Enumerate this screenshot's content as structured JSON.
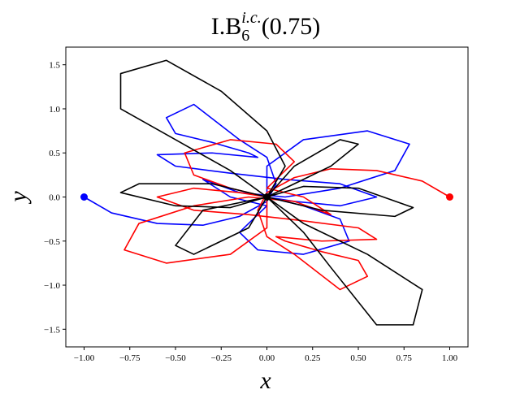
{
  "chart_data": {
    "type": "line",
    "title": {
      "main": "I.B",
      "sub": "6",
      "sup": "i.c.",
      "arg": "(0.75)"
    },
    "x_label": "x",
    "y_label": "y",
    "xlim": [
      -1.1,
      1.1
    ],
    "ylim": [
      -1.7,
      1.7
    ],
    "xticks": [
      {
        "value": -1.0,
        "label": "−1.00"
      },
      {
        "value": -0.75,
        "label": "−0.75"
      },
      {
        "value": -0.5,
        "label": "−0.50"
      },
      {
        "value": -0.25,
        "label": "−0.25"
      },
      {
        "value": 0,
        "label": "0.00"
      },
      {
        "value": 0.25,
        "label": "0.25"
      },
      {
        "value": 0.5,
        "label": "0.50"
      },
      {
        "value": 0.75,
        "label": "0.75"
      },
      {
        "value": 1.0,
        "label": "1.00"
      }
    ],
    "yticks": [
      {
        "value": -1.5,
        "label": "−1.5"
      },
      {
        "value": -1.0,
        "label": "−1.0"
      },
      {
        "value": -0.5,
        "label": "−0.5"
      },
      {
        "value": 0,
        "label": "0.0"
      },
      {
        "value": 0.5,
        "label": "0.5"
      },
      {
        "value": 1.0,
        "label": "1.0"
      },
      {
        "value": 1.5,
        "label": "1.5"
      }
    ],
    "series": [
      {
        "color": "#0000ff",
        "x": [
          -1.0,
          -0.85,
          -0.6,
          -0.35,
          -0.15,
          0.0,
          0.05,
          0.0,
          -0.15,
          -0.4,
          -0.55,
          -0.5,
          -0.3,
          -0.1,
          -0.05,
          -0.3,
          -0.6,
          -0.5,
          -0.2,
          0.1,
          0.4,
          0.6,
          0.4,
          0.15,
          0.0,
          0.0,
          0.2,
          0.55,
          0.78,
          0.7,
          0.4,
          0.1,
          -0.15,
          -0.35,
          -0.2,
          0.0,
          -0.15,
          -0.05,
          0.2,
          0.45,
          0.4,
          0.2,
          0.0
        ],
        "y": [
          0.0,
          -0.18,
          -0.3,
          -0.32,
          -0.22,
          -0.05,
          0.15,
          0.45,
          0.65,
          1.05,
          0.9,
          0.72,
          0.62,
          0.5,
          0.45,
          0.5,
          0.48,
          0.35,
          0.27,
          0.2,
          0.15,
          0.0,
          -0.1,
          -0.05,
          0.0,
          0.35,
          0.65,
          0.75,
          0.6,
          0.3,
          0.1,
          0.0,
          0.05,
          0.2,
          0.0,
          -0.1,
          -0.4,
          -0.6,
          -0.65,
          -0.5,
          -0.25,
          -0.1,
          0.0
        ]
      },
      {
        "color": "#ff0000",
        "x": [
          1.0,
          0.85,
          0.6,
          0.35,
          0.15,
          0.0,
          -0.05,
          0.0,
          0.15,
          0.4,
          0.55,
          0.5,
          0.3,
          0.1,
          0.05,
          0.3,
          0.6,
          0.5,
          0.2,
          -0.1,
          -0.4,
          -0.6,
          -0.4,
          -0.15,
          0.0,
          0.0,
          -0.2,
          -0.55,
          -0.78,
          -0.7,
          -0.4,
          -0.1,
          0.15,
          0.35,
          0.2,
          0.0,
          0.15,
          0.05,
          -0.2,
          -0.45,
          -0.4,
          -0.2,
          0.0
        ],
        "y": [
          0.0,
          0.18,
          0.3,
          0.32,
          0.22,
          0.05,
          -0.15,
          -0.45,
          -0.65,
          -1.05,
          -0.9,
          -0.72,
          -0.62,
          -0.5,
          -0.45,
          -0.5,
          -0.48,
          -0.35,
          -0.27,
          -0.2,
          -0.15,
          0.0,
          0.1,
          0.05,
          0.0,
          -0.35,
          -0.65,
          -0.75,
          -0.6,
          -0.3,
          -0.1,
          0.0,
          -0.05,
          -0.2,
          0.0,
          0.1,
          0.4,
          0.6,
          0.65,
          0.5,
          0.25,
          0.1,
          0.0
        ]
      },
      {
        "color": "#000000",
        "x": [
          0.0,
          0.1,
          0.0,
          -0.25,
          -0.55,
          -0.8,
          -0.8,
          -0.5,
          -0.2,
          0.0,
          0.3,
          0.7,
          0.8,
          0.5,
          0.2,
          0.0,
          -0.35,
          -0.5,
          -0.4,
          -0.1,
          0.0,
          0.15,
          0.4,
          0.5,
          0.35,
          0.0,
          -0.3,
          -0.7,
          -0.8,
          -0.5,
          -0.2,
          0.0,
          0.2,
          0.35,
          0.6,
          0.8,
          0.85,
          0.55,
          0.2,
          0.0
        ],
        "y": [
          0.0,
          0.35,
          0.75,
          1.2,
          1.55,
          1.4,
          1.0,
          0.65,
          0.3,
          0.0,
          -0.15,
          -0.22,
          -0.12,
          0.1,
          0.12,
          0.0,
          -0.15,
          -0.55,
          -0.65,
          -0.35,
          0.0,
          0.35,
          0.65,
          0.6,
          0.35,
          0.0,
          0.15,
          0.15,
          0.05,
          -0.1,
          -0.12,
          0.0,
          -0.4,
          -0.8,
          -1.45,
          -1.45,
          -1.05,
          -0.65,
          -0.3,
          0.0
        ]
      }
    ],
    "markers": [
      {
        "color": "#0000ff",
        "x": -1.0,
        "y": 0.0
      },
      {
        "color": "#ff0000",
        "x": 1.0,
        "y": 0.0
      },
      {
        "color": "#000000",
        "x": 0.0,
        "y": 0.0
      }
    ]
  }
}
